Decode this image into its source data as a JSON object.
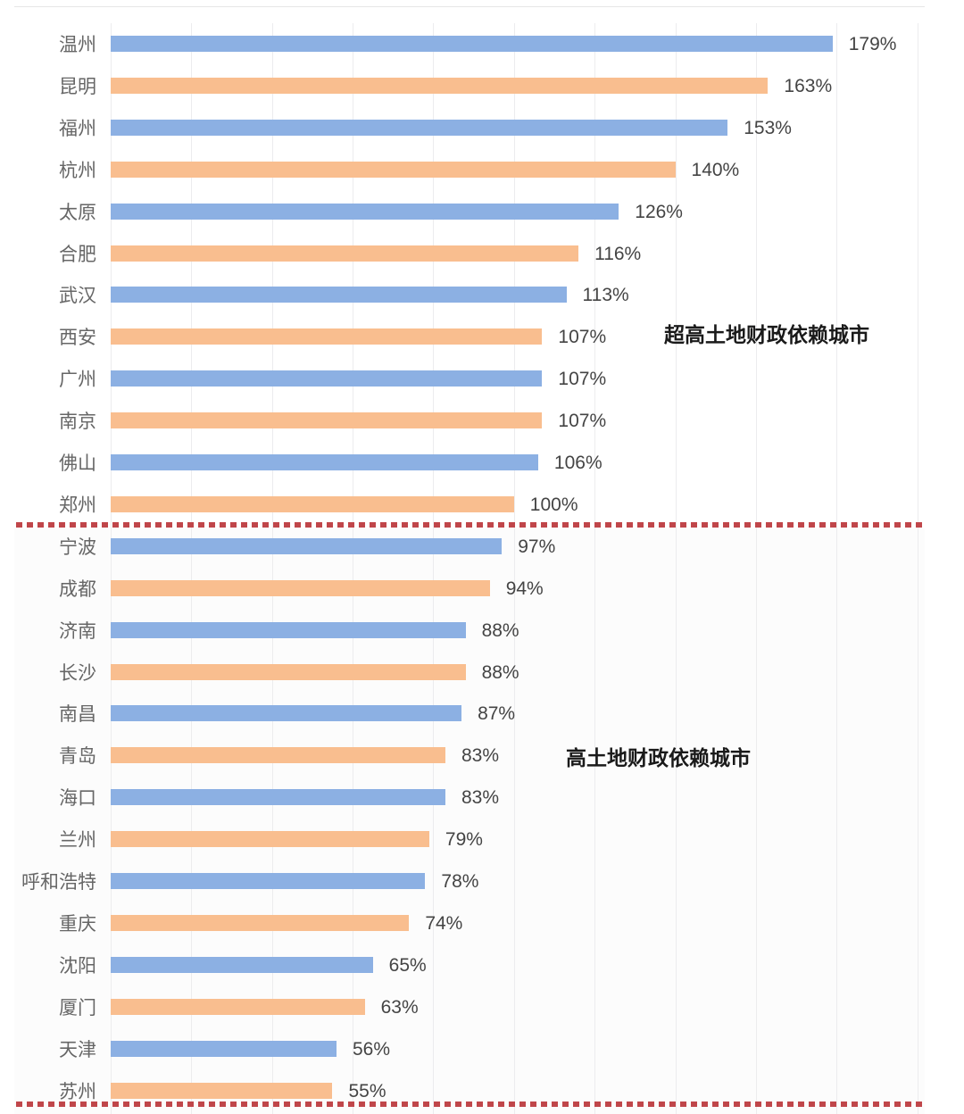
{
  "chart_data": {
    "type": "bar",
    "orientation": "horizontal",
    "title": "",
    "xlabel": "",
    "ylabel": "",
    "xlim": [
      0,
      200
    ],
    "grid": true,
    "grid_step": 20,
    "categories": [
      "温州",
      "昆明",
      "福州",
      "杭州",
      "太原",
      "合肥",
      "武汉",
      "西安",
      "广州",
      "南京",
      "佛山",
      "郑州",
      "宁波",
      "成都",
      "济南",
      "长沙",
      "南昌",
      "青岛",
      "海口",
      "兰州",
      "呼和浩特",
      "重庆",
      "沈阳",
      "厦门",
      "天津",
      "苏州"
    ],
    "values": [
      179,
      163,
      153,
      140,
      126,
      116,
      113,
      107,
      107,
      107,
      106,
      100,
      97,
      94,
      88,
      88,
      87,
      83,
      83,
      79,
      78,
      74,
      65,
      63,
      56,
      55
    ],
    "value_labels": [
      "179%",
      "163%",
      "153%",
      "140%",
      "126%",
      "116%",
      "113%",
      "107%",
      "107%",
      "107%",
      "106%",
      "100%",
      "97%",
      "94%",
      "88%",
      "88%",
      "87%",
      "83%",
      "83%",
      "79%",
      "78%",
      "74%",
      "65%",
      "63%",
      "56%",
      "55%"
    ],
    "bar_colors_alternating": [
      "#8cb0e3",
      "#f9be8f"
    ],
    "annotations": [
      {
        "text": "超高土地财政依赖城市",
        "group_range": [
          "温州",
          "郑州"
        ]
      },
      {
        "text": "高土地财政依赖城市",
        "group_range": [
          "宁波",
          "苏州"
        ]
      }
    ],
    "divider_color": "#c0464a",
    "legend": null
  }
}
